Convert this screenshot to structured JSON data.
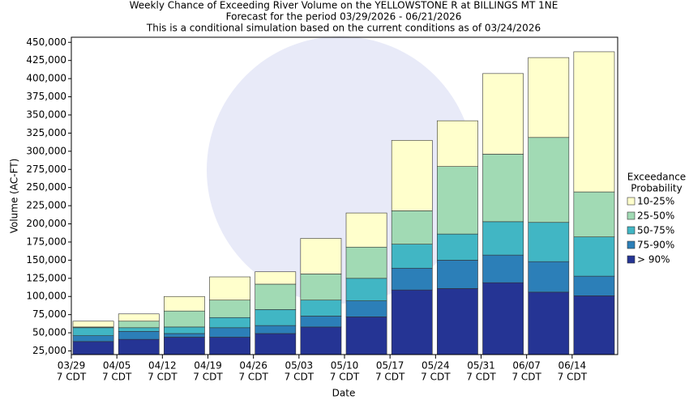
{
  "chart_data": {
    "type": "stacked-bar",
    "title": "Weekly Chance of Exceeding River Volume on the YELLOWSTONE R at BILLINGS MT 1NE",
    "subtitle": [
      "Forecast for the period 03/29/2026 - 06/21/2026",
      "This is a conditional simulation based on the current conditions as of 03/24/2026"
    ],
    "x_label": "Date",
    "y_label": "Volume (AC-FT)",
    "legend_title": [
      "Exceedance",
      "Probability"
    ],
    "categories": [
      "03/29",
      "04/05",
      "04/12",
      "04/19",
      "04/26",
      "05/03",
      "05/10",
      "05/17",
      "05/24",
      "05/31",
      "06/07",
      "06/14"
    ],
    "category_sublabels": [
      "7 CDT",
      "7 CDT",
      "7 CDT",
      "7 CDT",
      "7 CDT",
      "7 CDT",
      "7 CDT",
      "7 CDT",
      "7 CDT",
      "7 CDT",
      "7 CDT",
      "7 CDT"
    ],
    "series": [
      {
        "name": "10-25%",
        "color": "#ffffcc",
        "values": [
          8000,
          10000,
          20000,
          32000,
          17000,
          49000,
          47000,
          97000,
          63000,
          111000,
          110000,
          193000
        ]
      },
      {
        "name": "25-50%",
        "color": "#a1dab4",
        "values": [
          1000,
          9000,
          22000,
          24000,
          35000,
          36000,
          43000,
          46000,
          93000,
          93000,
          117000,
          62000
        ]
      },
      {
        "name": "50-75%",
        "color": "#41b6c4",
        "values": [
          11000,
          5000,
          9000,
          14000,
          22000,
          22000,
          31000,
          33000,
          36000,
          46000,
          54000,
          54000
        ]
      },
      {
        "name": "75-90%",
        "color": "#2c7fb8",
        "values": [
          8000,
          11000,
          5000,
          13000,
          11000,
          15000,
          22000,
          30000,
          39000,
          38000,
          42000,
          27000
        ]
      },
      {
        "name": "> 90%",
        "color": "#253494",
        "values": [
          38000,
          41000,
          44000,
          44000,
          49000,
          58000,
          72000,
          109000,
          111000,
          119000,
          106000,
          101000
        ]
      }
    ],
    "ylim": [
      20000,
      457000
    ],
    "yticks": [
      {
        "value": 25000,
        "label": "25,000"
      },
      {
        "value": 50000,
        "label": "50,000"
      },
      {
        "value": 75000,
        "label": "75,000"
      },
      {
        "value": 100000,
        "label": "100,000"
      },
      {
        "value": 125000,
        "label": "125,000"
      },
      {
        "value": 150000,
        "label": "150,000"
      },
      {
        "value": 175000,
        "label": "175,000"
      },
      {
        "value": 200000,
        "label": "200,000"
      },
      {
        "value": 225000,
        "label": "225,000"
      },
      {
        "value": 250000,
        "label": "250,000"
      },
      {
        "value": 275000,
        "label": "275,000"
      },
      {
        "value": 300000,
        "label": "300,000"
      },
      {
        "value": 325000,
        "label": "325,000"
      },
      {
        "value": 350000,
        "label": "350,000"
      },
      {
        "value": 375000,
        "label": "375,000"
      },
      {
        "value": 400000,
        "label": "400,000"
      },
      {
        "value": 425000,
        "label": "425,000"
      },
      {
        "value": 450000,
        "label": "450,000"
      }
    ]
  }
}
